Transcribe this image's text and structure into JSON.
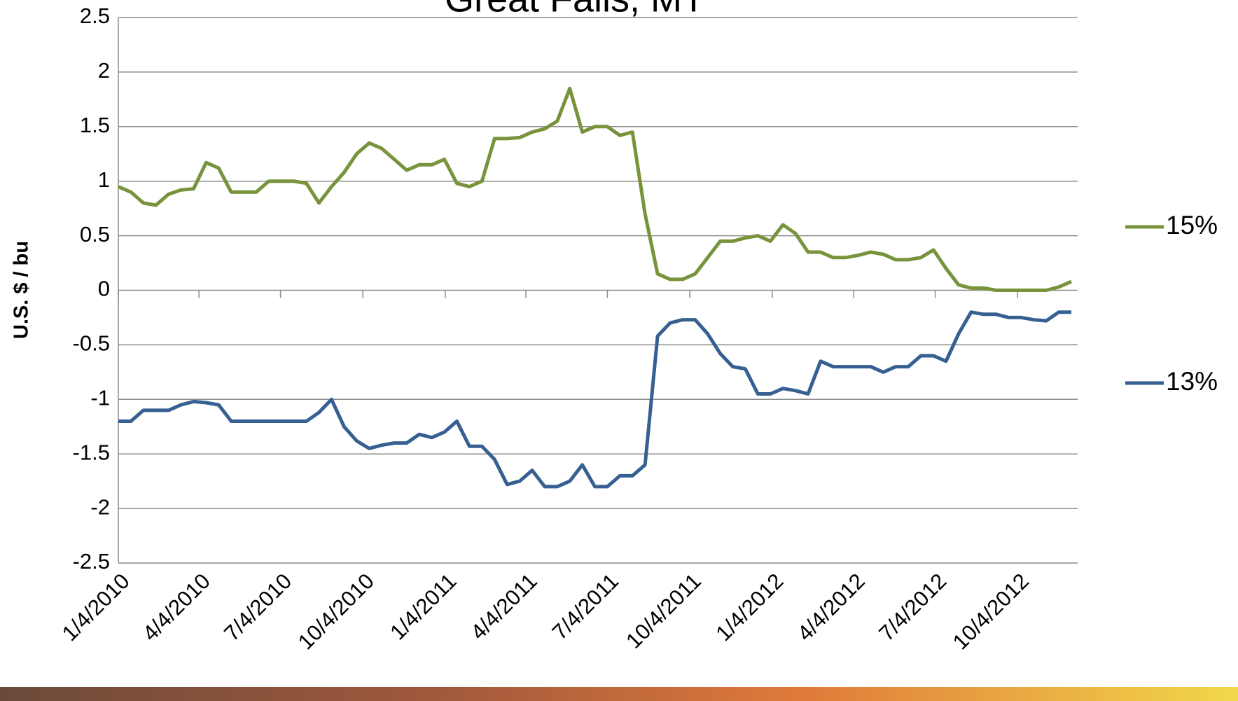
{
  "chart_data": {
    "type": "line",
    "title": "Great Falls, MT",
    "y_label": "U.S. $ / bu",
    "x": [
      "1/4/2010",
      "1/18/2010",
      "2/1/2010",
      "2/15/2010",
      "3/1/2010",
      "3/15/2010",
      "3/29/2010",
      "4/12/2010",
      "4/26/2010",
      "5/10/2010",
      "5/24/2010",
      "6/7/2010",
      "6/21/2010",
      "7/5/2010",
      "7/19/2010",
      "8/2/2010",
      "8/16/2010",
      "8/30/2010",
      "9/13/2010",
      "9/27/2010",
      "10/11/2010",
      "10/25/2010",
      "11/8/2010",
      "11/22/2010",
      "12/6/2010",
      "12/20/2010",
      "1/3/2011",
      "1/17/2011",
      "1/31/2011",
      "2/14/2011",
      "2/28/2011",
      "3/14/2011",
      "3/28/2011",
      "4/11/2011",
      "4/25/2011",
      "5/9/2011",
      "5/23/2011",
      "6/6/2011",
      "6/20/2011",
      "7/4/2011",
      "7/18/2011",
      "8/1/2011",
      "8/15/2011",
      "8/29/2011",
      "9/12/2011",
      "9/26/2011",
      "10/10/2011",
      "10/24/2011",
      "11/7/2011",
      "11/21/2011",
      "12/5/2011",
      "12/19/2011",
      "1/2/2012",
      "1/16/2012",
      "1/30/2012",
      "2/13/2012",
      "2/27/2012",
      "3/12/2012",
      "3/26/2012",
      "4/9/2012",
      "4/23/2012",
      "5/7/2012",
      "5/21/2012",
      "6/4/2012",
      "6/18/2012",
      "7/2/2012",
      "7/16/2012",
      "7/30/2012",
      "8/13/2012",
      "8/27/2012",
      "9/10/2012",
      "9/24/2012",
      "10/8/2012",
      "10/22/2012",
      "11/5/2012",
      "11/19/2012",
      "12/3/2012"
    ],
    "series": [
      {
        "name": "15%",
        "color": "#77933c",
        "values": [
          0.95,
          0.9,
          0.8,
          0.78,
          0.88,
          0.92,
          0.93,
          1.17,
          1.12,
          0.9,
          0.9,
          0.9,
          1.0,
          1.0,
          1.0,
          0.98,
          0.8,
          0.95,
          1.08,
          1.25,
          1.35,
          1.3,
          1.2,
          1.1,
          1.15,
          1.15,
          1.2,
          0.98,
          0.95,
          1.0,
          1.39,
          1.39,
          1.4,
          1.45,
          1.48,
          1.55,
          1.85,
          1.45,
          1.5,
          1.5,
          1.42,
          1.45,
          0.7,
          0.15,
          0.1,
          0.1,
          0.15,
          0.3,
          0.45,
          0.45,
          0.48,
          0.5,
          0.45,
          0.6,
          0.52,
          0.35,
          0.35,
          0.3,
          0.3,
          0.32,
          0.35,
          0.33,
          0.28,
          0.28,
          0.3,
          0.37,
          0.2,
          0.05,
          0.02,
          0.02,
          0,
          0,
          0,
          0,
          0,
          0.03,
          0.08
        ]
      },
      {
        "name": "13%",
        "color": "#376092",
        "values": [
          -1.2,
          -1.2,
          -1.1,
          -1.1,
          -1.1,
          -1.05,
          -1.02,
          -1.03,
          -1.05,
          -1.2,
          -1.2,
          -1.2,
          -1.2,
          -1.2,
          -1.2,
          -1.2,
          -1.12,
          -1.0,
          -1.25,
          -1.38,
          -1.45,
          -1.42,
          -1.4,
          -1.4,
          -1.32,
          -1.35,
          -1.3,
          -1.2,
          -1.43,
          -1.43,
          -1.55,
          -1.78,
          -1.75,
          -1.65,
          -1.8,
          -1.8,
          -1.75,
          -1.6,
          -1.8,
          -1.8,
          -1.7,
          -1.7,
          -1.6,
          -0.42,
          -0.3,
          -0.27,
          -0.27,
          -0.4,
          -0.58,
          -0.7,
          -0.72,
          -0.95,
          -0.95,
          -0.9,
          -0.92,
          -0.95,
          -0.65,
          -0.7,
          -0.7,
          -0.7,
          -0.7,
          -0.75,
          -0.7,
          -0.7,
          -0.6,
          -0.6,
          -0.65,
          -0.4,
          -0.2,
          -0.22,
          -0.22,
          -0.25,
          -0.25,
          -0.27,
          -0.28,
          -0.2,
          -0.2
        ]
      }
    ],
    "xlim": [
      "1/4/2010",
      "12/10/2012"
    ],
    "xticks": [
      "1/4/2010",
      "4/4/2010",
      "7/4/2010",
      "10/4/2010",
      "1/4/2011",
      "4/4/2011",
      "7/4/2011",
      "10/4/2011",
      "1/4/2012",
      "4/4/2012",
      "7/4/2012",
      "10/4/2012"
    ],
    "ylim": [
      -2.5,
      2.5
    ],
    "yticks": [
      -2.5,
      -2,
      -1.5,
      -1,
      -0.5,
      0,
      0.5,
      1,
      1.5,
      2,
      2.5
    ],
    "grid": true,
    "legend": "right"
  }
}
